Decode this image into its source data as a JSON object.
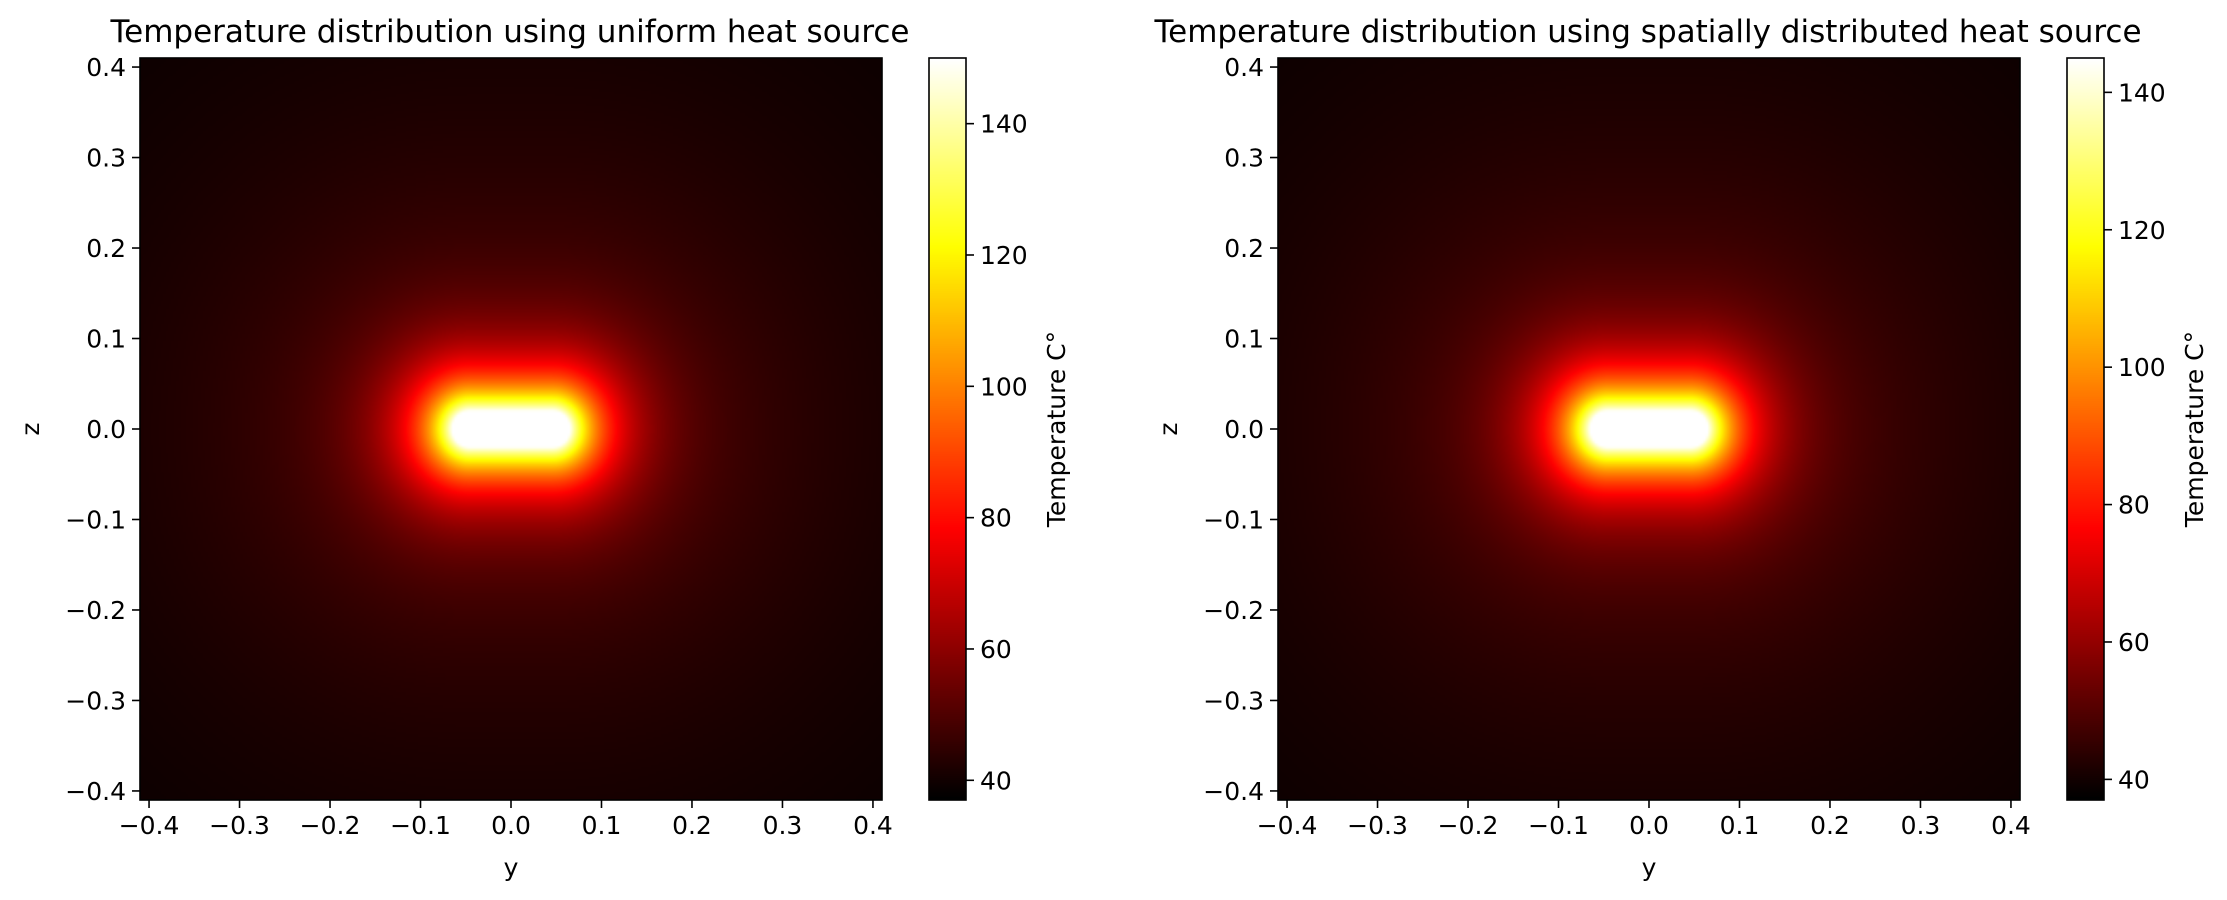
{
  "chart_data": [
    {
      "type": "heatmap",
      "title": "Temperature distribution using uniform heat source",
      "xlabel": "y",
      "ylabel": "z",
      "xlim": [
        -0.41,
        0.41
      ],
      "ylim": [
        -0.41,
        0.41
      ],
      "x_ticks": [
        "−0.4",
        "−0.3",
        "−0.2",
        "−0.1",
        "0.0",
        "0.1",
        "0.2",
        "0.3",
        "0.4"
      ],
      "y_ticks": [
        "−0.4",
        "−0.3",
        "−0.2",
        "−0.1",
        "0.0",
        "0.1",
        "0.2",
        "0.3",
        "0.4"
      ],
      "colormap": "hot",
      "colorbar": {
        "label": "Temperature C°",
        "vmin": 37,
        "vmax": 150,
        "ticks": [
          "40",
          "60",
          "80",
          "100",
          "120",
          "140"
        ]
      },
      "grid": false,
      "heat_source": {
        "shape": "stadium",
        "y_range": [
          -0.045,
          0.045
        ],
        "z_half_width": 0.02,
        "peak_temperature": 150,
        "ambient_temperature": 37
      }
    },
    {
      "type": "heatmap",
      "title": "Temperature distribution using spatially distributed heat source",
      "xlabel": "y",
      "ylabel": "z",
      "xlim": [
        -0.41,
        0.41
      ],
      "ylim": [
        -0.41,
        0.41
      ],
      "x_ticks": [
        "−0.4",
        "−0.3",
        "−0.2",
        "−0.1",
        "0.0",
        "0.1",
        "0.2",
        "0.3",
        "0.4"
      ],
      "y_ticks": [
        "−0.4",
        "−0.3",
        "−0.2",
        "−0.1",
        "0.0",
        "0.1",
        "0.2",
        "0.3",
        "0.4"
      ],
      "colormap": "hot",
      "colorbar": {
        "label": "Temperature C°",
        "vmin": 37,
        "vmax": 145,
        "ticks": [
          "40",
          "60",
          "80",
          "100",
          "120",
          "140"
        ]
      },
      "grid": false,
      "heat_source": {
        "shape": "stadium",
        "y_range": [
          -0.045,
          0.045
        ],
        "z_half_width": 0.02,
        "peak_temperature": 145,
        "ambient_temperature": 37
      }
    }
  ]
}
